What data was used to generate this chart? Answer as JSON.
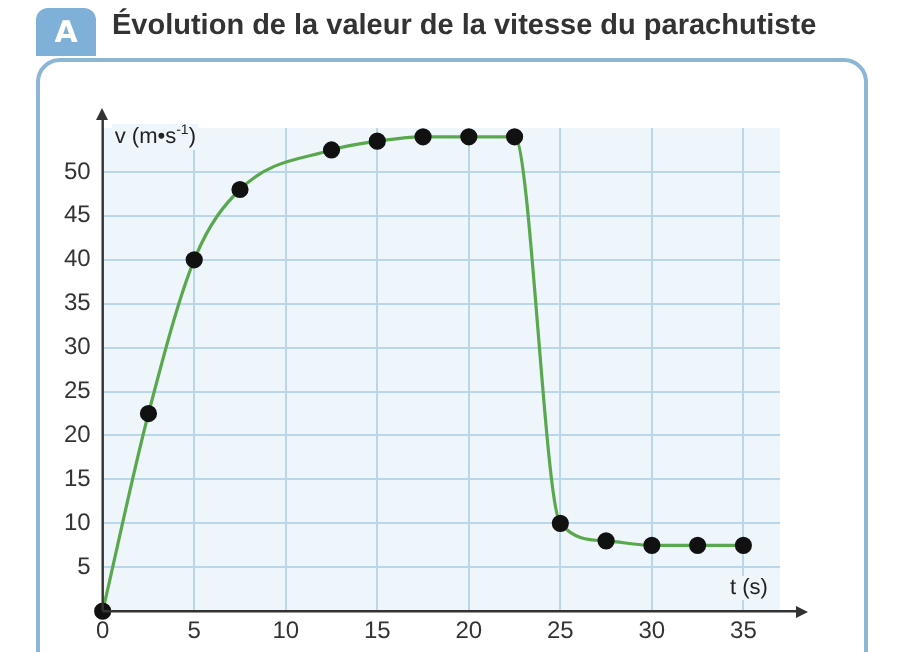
{
  "chart_data": {
    "type": "line",
    "title": "Évolution de la valeur de la vitesse du parachutiste",
    "annotations": [
      "A"
    ],
    "xlabel": "t (s)",
    "ylabel": "v (m•s$^{-1}$)",
    "x": [
      0,
      2.5,
      5,
      7.5,
      12.5,
      15,
      17.5,
      20,
      22.5,
      25,
      27.5,
      30,
      32.5,
      35
    ],
    "series": [
      {
        "color": "#5aa84e",
        "values": [
          0,
          22.5,
          40,
          48,
          52.5,
          53.5,
          54,
          54,
          54,
          10,
          8,
          7.5,
          7.5,
          7.5
        ]
      }
    ],
    "xlim": [
      0,
      37
    ],
    "xticks": [
      0,
      5,
      10,
      15,
      20,
      25,
      30,
      35
    ],
    "ylim": [
      0,
      55
    ],
    "yticks": [
      5,
      10,
      15,
      20,
      25,
      30,
      35,
      40,
      45,
      50
    ],
    "grid": true,
    "marker": "circle",
    "line_style": "solid",
    "legend": false
  }
}
